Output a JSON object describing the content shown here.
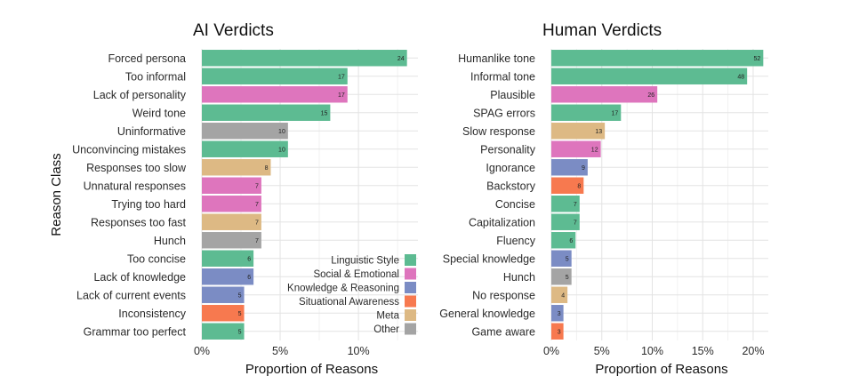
{
  "chart_data": [
    {
      "type": "bar",
      "orientation": "horizontal",
      "title": "AI Verdicts",
      "xlabel": "Proportion of Reasons",
      "ylabel": "Reason Class",
      "xlim": [
        0,
        13.8
      ],
      "xticks": [
        0,
        5,
        10
      ],
      "xtick_labels": [
        "0%",
        "5%",
        "10%"
      ],
      "grid": true,
      "bars": [
        {
          "label": "Forced persona",
          "count": 24,
          "value": 13.1,
          "class": "Linguistic Style"
        },
        {
          "label": "Too informal",
          "count": 17,
          "value": 9.3,
          "class": "Linguistic Style"
        },
        {
          "label": "Lack of personality",
          "count": 17,
          "value": 9.3,
          "class": "Social & Emotional"
        },
        {
          "label": "Weird tone",
          "count": 15,
          "value": 8.2,
          "class": "Linguistic Style"
        },
        {
          "label": "Uninformative",
          "count": 10,
          "value": 5.5,
          "class": "Other"
        },
        {
          "label": "Unconvincing mistakes",
          "count": 10,
          "value": 5.5,
          "class": "Linguistic Style"
        },
        {
          "label": "Responses too slow",
          "count": 8,
          "value": 4.4,
          "class": "Meta"
        },
        {
          "label": "Unnatural responses",
          "count": 7,
          "value": 3.8,
          "class": "Social & Emotional"
        },
        {
          "label": "Trying too hard",
          "count": 7,
          "value": 3.8,
          "class": "Social & Emotional"
        },
        {
          "label": "Responses too fast",
          "count": 7,
          "value": 3.8,
          "class": "Meta"
        },
        {
          "label": "Hunch",
          "count": 7,
          "value": 3.8,
          "class": "Other"
        },
        {
          "label": "Too concise",
          "count": 6,
          "value": 3.3,
          "class": "Linguistic Style"
        },
        {
          "label": "Lack of knowledge",
          "count": 6,
          "value": 3.3,
          "class": "Knowledge & Reasoning"
        },
        {
          "label": "Lack of current events",
          "count": 5,
          "value": 2.7,
          "class": "Knowledge & Reasoning"
        },
        {
          "label": "Inconsistency",
          "count": 5,
          "value": 2.7,
          "class": "Situational Awareness"
        },
        {
          "label": "Grammar too perfect",
          "count": 5,
          "value": 2.7,
          "class": "Linguistic Style"
        }
      ]
    },
    {
      "type": "bar",
      "orientation": "horizontal",
      "title": "Human Verdicts",
      "xlabel": "Proportion of Reasons",
      "ylabel": "",
      "xlim": [
        0,
        21.5
      ],
      "xticks": [
        0,
        5,
        10,
        15,
        20
      ],
      "xtick_labels": [
        "0%",
        "5%",
        "10%",
        "15%",
        "20%"
      ],
      "grid": true,
      "bars": [
        {
          "label": "Humanlike tone",
          "count": 52,
          "value": 21.0,
          "class": "Linguistic Style"
        },
        {
          "label": "Informal tone",
          "count": 48,
          "value": 19.4,
          "class": "Linguistic Style"
        },
        {
          "label": "Plausible",
          "count": 26,
          "value": 10.5,
          "class": "Social & Emotional"
        },
        {
          "label": "SPAG errors",
          "count": 17,
          "value": 6.9,
          "class": "Linguistic Style"
        },
        {
          "label": "Slow response",
          "count": 13,
          "value": 5.3,
          "class": "Meta"
        },
        {
          "label": "Personality",
          "count": 12,
          "value": 4.9,
          "class": "Social & Emotional"
        },
        {
          "label": "Ignorance",
          "count": 9,
          "value": 3.6,
          "class": "Knowledge & Reasoning"
        },
        {
          "label": "Backstory",
          "count": 8,
          "value": 3.2,
          "class": "Situational Awareness"
        },
        {
          "label": "Concise",
          "count": 7,
          "value": 2.8,
          "class": "Linguistic Style"
        },
        {
          "label": "Capitalization",
          "count": 7,
          "value": 2.8,
          "class": "Linguistic Style"
        },
        {
          "label": "Fluency",
          "count": 6,
          "value": 2.4,
          "class": "Linguistic Style"
        },
        {
          "label": "Special knowledge",
          "count": 5,
          "value": 2.0,
          "class": "Knowledge & Reasoning"
        },
        {
          "label": "Hunch",
          "count": 5,
          "value": 2.0,
          "class": "Other"
        },
        {
          "label": "No response",
          "count": 4,
          "value": 1.6,
          "class": "Meta"
        },
        {
          "label": "General knowledge",
          "count": 3,
          "value": 1.2,
          "class": "Knowledge & Reasoning"
        },
        {
          "label": "Game aware",
          "count": 3,
          "value": 1.2,
          "class": "Situational Awareness"
        }
      ]
    }
  ],
  "legend": {
    "placement": "bottom-right of left panel",
    "items": [
      {
        "name": "Linguistic Style",
        "color": "#5dbb92"
      },
      {
        "name": "Social & Emotional",
        "color": "#de75bd"
      },
      {
        "name": "Knowledge & Reasoning",
        "color": "#7b8cc4"
      },
      {
        "name": "Situational Awareness",
        "color": "#f7794f"
      },
      {
        "name": "Meta",
        "color": "#ddb984"
      },
      {
        "name": "Other",
        "color": "#a4a4a4"
      }
    ]
  }
}
